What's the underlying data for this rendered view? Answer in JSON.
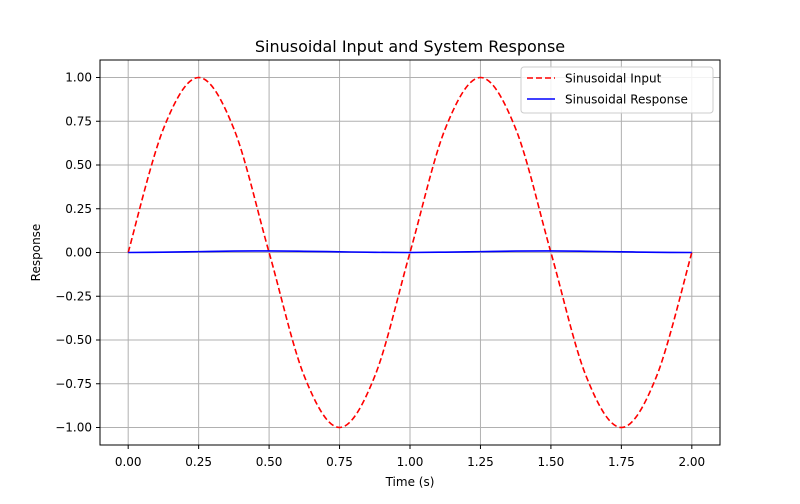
{
  "chart_data": {
    "type": "line",
    "title": "Sinusoidal Input and System Response",
    "xlabel": "Time (s)",
    "ylabel": "Response",
    "xlim": [
      -0.1,
      2.1
    ],
    "ylim": [
      -1.1,
      1.1
    ],
    "grid": true,
    "legend_position": "top-right",
    "x_ticks": [
      0.0,
      0.25,
      0.5,
      0.75,
      1.0,
      1.25,
      1.5,
      1.75,
      2.0
    ],
    "x_tick_labels": [
      "0.00",
      "0.25",
      "0.50",
      "0.75",
      "1.00",
      "1.25",
      "1.50",
      "1.75",
      "2.00"
    ],
    "y_ticks": [
      -1.0,
      -0.75,
      -0.5,
      -0.25,
      0.0,
      0.25,
      0.5,
      0.75,
      1.0
    ],
    "y_tick_labels": [
      "−1.00",
      "−0.75",
      "−0.50",
      "−0.25",
      "0.00",
      "0.25",
      "0.50",
      "0.75",
      "1.00"
    ],
    "x": [
      0.0,
      0.125,
      0.25,
      0.375,
      0.5,
      0.625,
      0.75,
      0.875,
      1.0,
      1.125,
      1.25,
      1.375,
      1.5,
      1.625,
      1.75,
      1.875,
      2.0
    ],
    "series": [
      {
        "name": "Sinusoidal Input",
        "color": "#ff0000",
        "style": "dashed",
        "values": [
          0.0,
          0.707,
          1.0,
          0.707,
          0.0,
          -0.707,
          -1.0,
          -0.707,
          0.0,
          0.707,
          1.0,
          0.707,
          0.0,
          -0.707,
          -1.0,
          -0.707,
          0.0
        ]
      },
      {
        "name": "Sinusoidal Response",
        "color": "#0000ff",
        "style": "solid",
        "values": [
          0.0,
          0.002,
          0.005,
          0.008,
          0.009,
          0.007,
          0.004,
          0.001,
          0.0,
          0.002,
          0.005,
          0.008,
          0.009,
          0.007,
          0.004,
          0.001,
          0.0
        ]
      }
    ]
  }
}
